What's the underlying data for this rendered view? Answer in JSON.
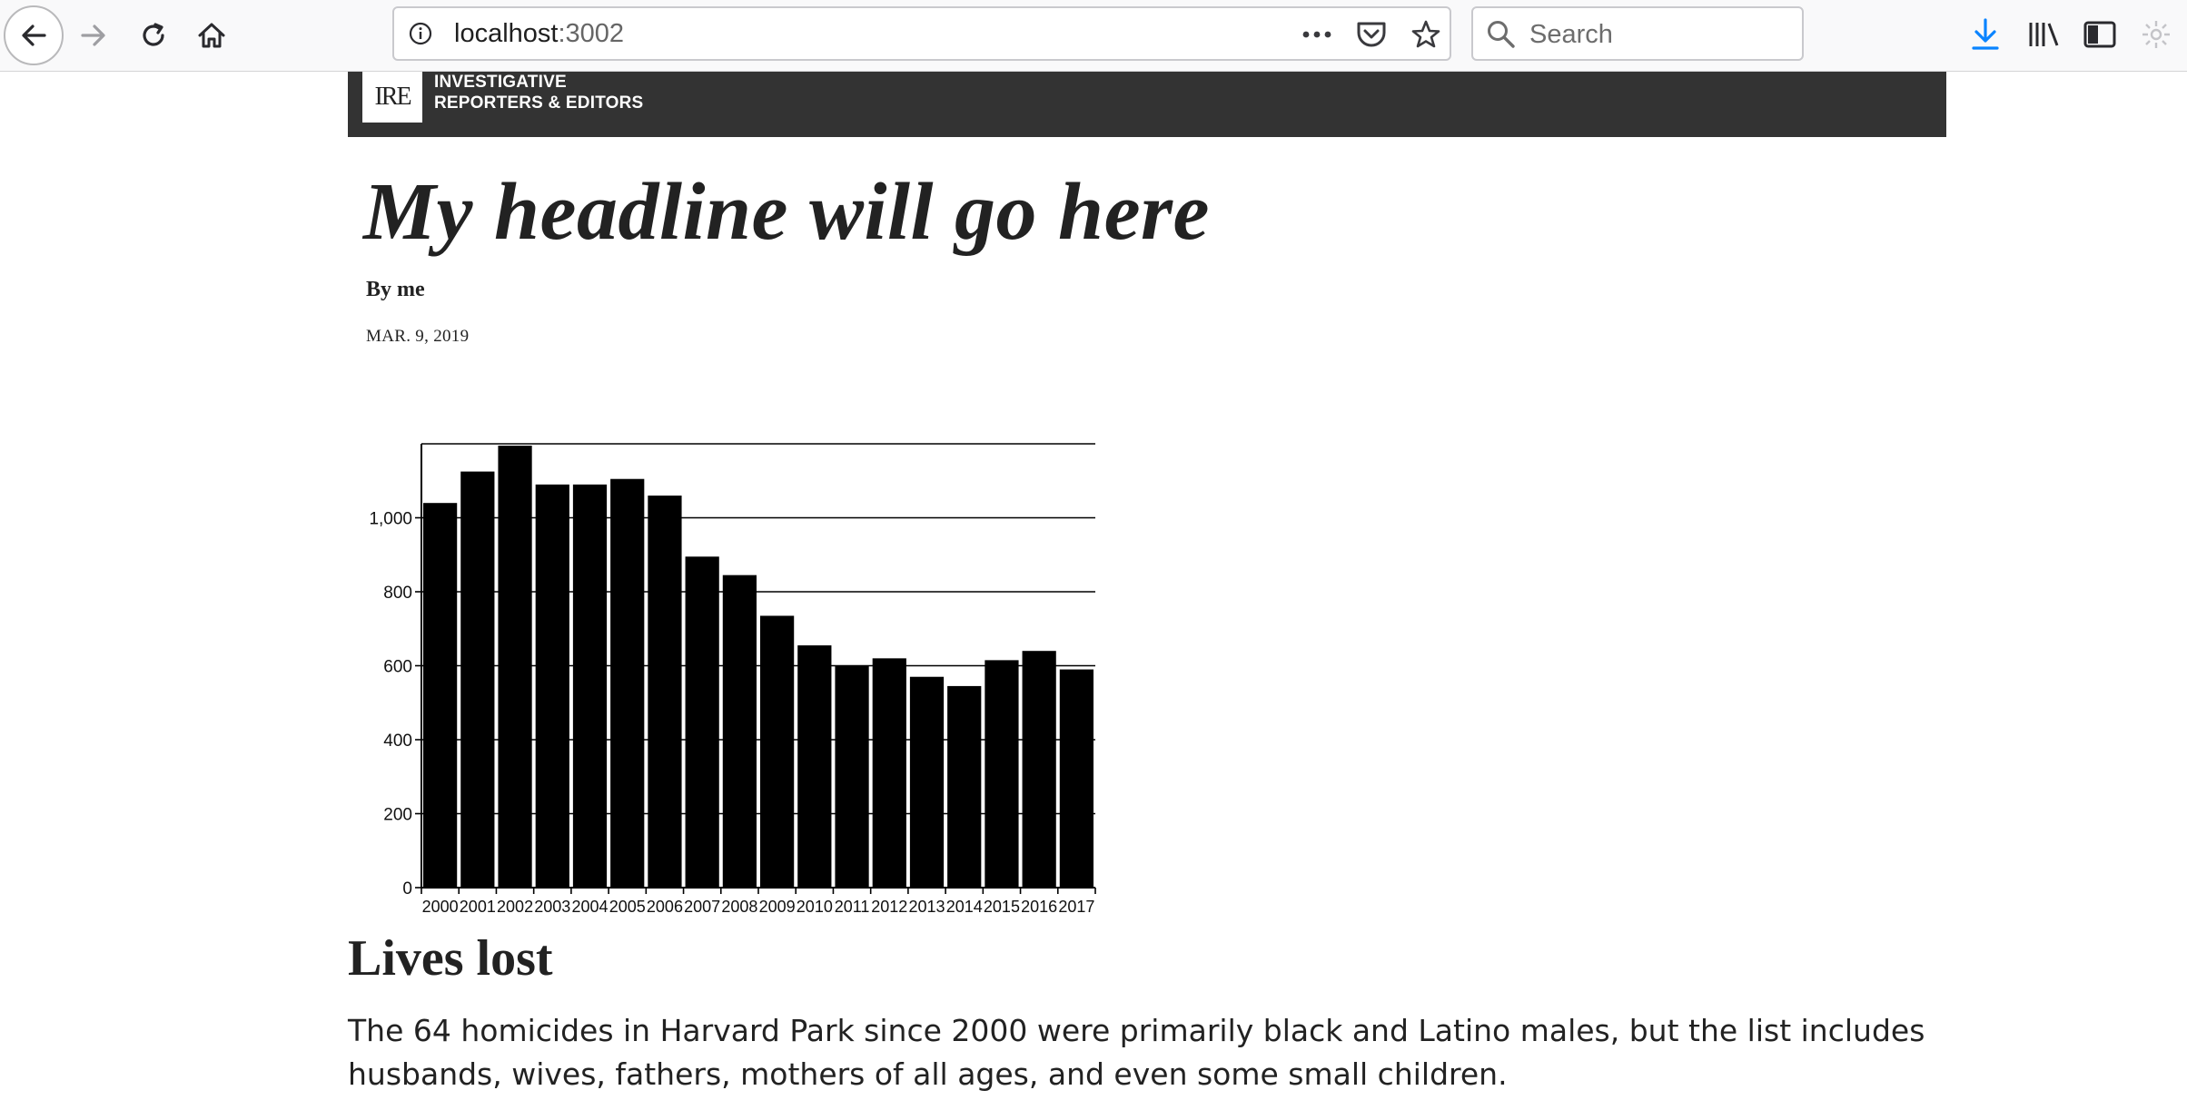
{
  "browser": {
    "url_host": "localhost",
    "url_port": ":3002",
    "search_placeholder": "Search"
  },
  "site": {
    "logo_text": "IRE",
    "name_line1": "INVESTIGATIVE",
    "name_line2": "REPORTERS & EDITORS",
    "header_color": "#333333"
  },
  "article": {
    "headline": "My headline will go here",
    "byline": "By me",
    "date": "MAR. 9, 2019",
    "section_heading": "Lives lost",
    "paragraph": "The 64 homicides in Harvard Park since 2000 were primarily black and Latino males, but the list includes husbands, wives, fathers, mothers of all ages, and even some small children."
  },
  "chart_data": {
    "type": "bar",
    "categories": [
      "2000",
      "2001",
      "2002",
      "2003",
      "2004",
      "2005",
      "2006",
      "2007",
      "2008",
      "2009",
      "2010",
      "2011",
      "2012",
      "2013",
      "2014",
      "2015",
      "2016",
      "2017"
    ],
    "values": [
      1040,
      1125,
      1195,
      1090,
      1090,
      1105,
      1060,
      895,
      845,
      735,
      655,
      600,
      620,
      570,
      545,
      615,
      640,
      590
    ],
    "ylim": [
      0,
      1200
    ],
    "yticks": [
      0,
      200,
      400,
      600,
      800,
      1000
    ],
    "ytick_labels": [
      "0",
      "200",
      "400",
      "600",
      "800",
      "1,000"
    ],
    "grid": true,
    "bar_color": "#000000"
  }
}
